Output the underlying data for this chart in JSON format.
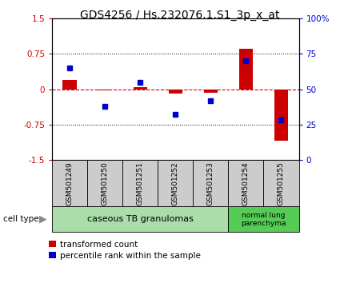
{
  "title": "GDS4256 / Hs.232076.1.S1_3p_x_at",
  "samples": [
    "GSM501249",
    "GSM501250",
    "GSM501251",
    "GSM501252",
    "GSM501253",
    "GSM501254",
    "GSM501255"
  ],
  "transformed_count": [
    0.2,
    -0.02,
    0.05,
    -0.1,
    -0.08,
    0.85,
    -1.1
  ],
  "percentile_rank": [
    65,
    38,
    55,
    32,
    42,
    70,
    28
  ],
  "left_ylim": [
    -1.5,
    1.5
  ],
  "right_ylim": [
    0,
    100
  ],
  "left_yticks": [
    -1.5,
    -0.75,
    0,
    0.75,
    1.5
  ],
  "right_yticks": [
    0,
    25,
    50,
    75,
    100
  ],
  "left_ytick_labels": [
    "-1.5",
    "-0.75",
    "0",
    "0.75",
    "1.5"
  ],
  "right_ytick_labels": [
    "0",
    "25",
    "50",
    "75",
    "100%"
  ],
  "bar_color": "#cc0000",
  "dot_color": "#0000cc",
  "dashed_line_color": "#cc0000",
  "grid_color": "#000000",
  "group1_label": "caseous TB granulomas",
  "group2_label": "normal lung\nparenchyma",
  "cell_type_label": "cell type",
  "legend1": "transformed count",
  "legend2": "percentile rank within the sample",
  "group1_bg": "#aaddaa",
  "group2_bg": "#55cc55",
  "sample_bg": "#cccccc",
  "title_fontsize": 10,
  "tick_fontsize": 7.5,
  "sample_fontsize": 6.5,
  "group_fontsize": 8,
  "legend_fontsize": 7.5,
  "bar_width": 0.4
}
